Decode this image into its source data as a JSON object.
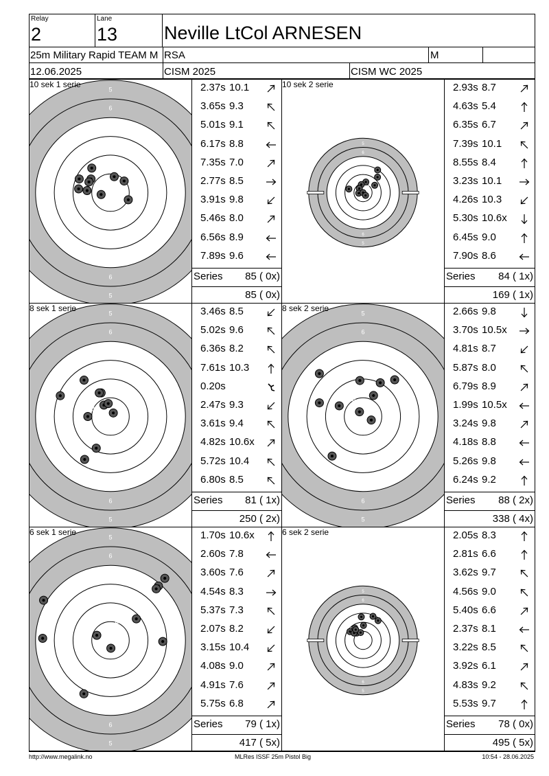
{
  "header": {
    "relay_label": "Relay",
    "relay": "2",
    "lane_label": "Lane",
    "lane": "13",
    "shooter": "Neville LtCol ARNESEN",
    "event": "25m Military Rapid TEAM M",
    "nation": "RSA",
    "gender": "M",
    "date": "12.06.2025",
    "competition": "CISM 2025",
    "championship": "CISM WC 2025"
  },
  "series_label": "Series",
  "panels": [
    {
      "title": "10 sek 1 serie",
      "scale": "big",
      "series_total": "85 ( 0x)",
      "running_total": "85 ( 0x)",
      "shots": [
        {
          "time": "2.37s",
          "score": "10.1",
          "arrow": "ne",
          "dx": -0.5,
          "dy": 0.1
        },
        {
          "time": "3.65s",
          "score": "9.3",
          "arrow": "nw",
          "dx": 0.2,
          "dy": -0.85
        },
        {
          "time": "5.01s",
          "score": "9.1",
          "arrow": "nw",
          "dx": 0.73,
          "dy": -0.62
        },
        {
          "time": "6.17s",
          "score": "8.8",
          "arrow": "w",
          "dx": -1.04,
          "dy": -0.73
        },
        {
          "time": "7.35s",
          "score": "7.0",
          "arrow": "ne",
          "dx": -1.25,
          "dy": -0.11
        },
        {
          "time": "2.77s",
          "score": "8.5",
          "arrow": "e",
          "dx": 0.95,
          "dy": 0.38
        },
        {
          "time": "3.91s",
          "score": "9.8",
          "arrow": "sw",
          "dx": -1.15,
          "dy": -0.57
        },
        {
          "time": "5.46s",
          "score": "8.0",
          "arrow": "ne",
          "dx": -1.0,
          "dy": -1.31
        },
        {
          "time": "6.56s",
          "score": "8.9",
          "arrow": "w",
          "dx": -1.67,
          "dy": -0.73
        },
        {
          "time": "7.89s",
          "score": "9.6",
          "arrow": "w",
          "dx": -1.7,
          "dy": -0.2
        }
      ]
    },
    {
      "title": "10 sek 2 serie",
      "scale": "small",
      "series_total": "84 ( 1x)",
      "running_total": "169 ( 1x)",
      "shots": [
        {
          "time": "2.93s",
          "score": "8.7",
          "arrow": "ne",
          "dx": 1.61,
          "dy": -2.5
        },
        {
          "time": "4.63s",
          "score": "5.4",
          "arrow": "n",
          "dx": 1.6,
          "dy": -1.71
        },
        {
          "time": "6.35s",
          "score": "6.7",
          "arrow": "ne",
          "dx": 0.31,
          "dy": -1.17
        },
        {
          "time": "7.39s",
          "score": "10.1",
          "arrow": "nw",
          "dx": -0.19,
          "dy": -0.89
        },
        {
          "time": "8.55s",
          "score": "8.4",
          "arrow": "n",
          "dx": 1.29,
          "dy": -0.81
        },
        {
          "time": "3.23s",
          "score": "10.1",
          "arrow": "e",
          "dx": -0.41,
          "dy": -0.46
        },
        {
          "time": "4.26s",
          "score": "10.3",
          "arrow": "sw",
          "dx": -0.48,
          "dy": 0.06
        },
        {
          "time": "5.30s",
          "score": "10.6x",
          "arrow": "s",
          "dx": 0.0,
          "dy": 0.0
        },
        {
          "time": "6.45s",
          "score": "9.0",
          "arrow": "n",
          "dx": 0.28,
          "dy": 0.31
        },
        {
          "time": "7.90s",
          "score": "8.6",
          "arrow": "w",
          "dx": -1.56,
          "dy": -0.4
        }
      ]
    },
    {
      "title": "8 sek 1 serie",
      "scale": "big",
      "series_total": "81 ( 1x)",
      "running_total": "250 ( 2x)",
      "shots": [
        {
          "time": "3.46s",
          "score": "8.5",
          "arrow": "sw",
          "dx": -1.41,
          "dy": -1.94
        },
        {
          "time": "5.02s",
          "score": "9.6",
          "arrow": "nw",
          "dx": -0.5,
          "dy": -1.26
        },
        {
          "time": "6.36s",
          "score": "8.2",
          "arrow": "nw",
          "dx": -0.6,
          "dy": -1.26
        },
        {
          "time": "7.61s",
          "score": "10.3",
          "arrow": "n",
          "dx": -0.35,
          "dy": -0.61
        },
        {
          "time": "0.20s",
          "score": "",
          "arrow": "scatter",
          "dx": -0.12,
          "dy": -0.69
        },
        {
          "time": "2.47s",
          "score": "9.3",
          "arrow": "sw",
          "dx": 0.15,
          "dy": -0.19
        },
        {
          "time": "3.61s",
          "score": "9.4",
          "arrow": "nw",
          "dx": -1.21,
          "dy": 0.0
        },
        {
          "time": "4.82s",
          "score": "10.6x",
          "arrow": "ne",
          "dx": -0.76,
          "dy": 1.69
        },
        {
          "time": "5.72s",
          "score": "10.4",
          "arrow": "nw",
          "dx": -1.38,
          "dy": 2.29
        },
        {
          "time": "6.80s",
          "score": "8.5",
          "arrow": "nw",
          "dx": -2.68,
          "dy": -1.11
        }
      ]
    },
    {
      "title": "8 sek 2 serie",
      "scale": "big",
      "series_total": "88 ( 2x)",
      "running_total": "338 ( 4x)",
      "shots": [
        {
          "time": "2.66s",
          "score": "9.8",
          "arrow": "s",
          "dx": -0.17,
          "dy": -1.92
        },
        {
          "time": "3.70s",
          "score": "10.5x",
          "arrow": "e",
          "dx": -0.19,
          "dy": -0.25
        },
        {
          "time": "4.81s",
          "score": "8.7",
          "arrow": "sw",
          "dx": 0.44,
          "dy": 0.19
        },
        {
          "time": "5.87s",
          "score": "8.0",
          "arrow": "nw",
          "dx": 0.56,
          "dy": -1.12
        },
        {
          "time": "6.79s",
          "score": "8.9",
          "arrow": "ne",
          "dx": 0.92,
          "dy": -1.8
        },
        {
          "time": "1.99s",
          "score": "10.5x",
          "arrow": "w",
          "dx": 1.69,
          "dy": -1.96
        },
        {
          "time": "3.24s",
          "score": "9.8",
          "arrow": "ne",
          "dx": -2.33,
          "dy": -2.29
        },
        {
          "time": "4.18s",
          "score": "8.8",
          "arrow": "w",
          "dx": -2.33,
          "dy": -0.73
        },
        {
          "time": "5.26s",
          "score": "9.8",
          "arrow": "w",
          "dx": -1.27,
          "dy": -0.57
        },
        {
          "time": "6.24s",
          "score": "9.2",
          "arrow": "n",
          "dx": -1.65,
          "dy": 2.11
        }
      ]
    },
    {
      "title": "6 sek 1 serie",
      "scale": "big",
      "series_total": "79 ( 1x)",
      "running_total": "417 ( 5x)",
      "shots": [
        {
          "time": "1.70s",
          "score": "10.6x",
          "arrow": "n",
          "dx": 0.02,
          "dy": 0.42
        },
        {
          "time": "2.60s",
          "score": "7.8",
          "arrow": "w",
          "dx": 1.38,
          "dy": -1.15
        },
        {
          "time": "3.60s",
          "score": "7.6",
          "arrow": "ne",
          "dx": 2.56,
          "dy": -2.9
        },
        {
          "time": "4.54s",
          "score": "8.3",
          "arrow": "e",
          "dx": 2.44,
          "dy": -2.75
        },
        {
          "time": "5.37s",
          "score": "7.3",
          "arrow": "nw",
          "dx": 2.79,
          "dy": 0.06
        },
        {
          "time": "2.07s",
          "score": "8.2",
          "arrow": "sw",
          "dx": 2.9,
          "dy": -3.31
        },
        {
          "time": "3.15s",
          "score": "10.4",
          "arrow": "sw",
          "dx": -0.73,
          "dy": -0.27
        },
        {
          "time": "4.08s",
          "score": "9.0",
          "arrow": "ne",
          "dx": -3.57,
          "dy": -2.14
        },
        {
          "time": "4.91s",
          "score": "7.6",
          "arrow": "ne",
          "dx": -3.62,
          "dy": -0.11
        },
        {
          "time": "5.75s",
          "score": "6.8",
          "arrow": "ne",
          "dx": -1.42,
          "dy": 2.85
        }
      ]
    },
    {
      "title": "6 sek 2 serie",
      "scale": "small",
      "series_total": "78 ( 0x)",
      "running_total": "495 ( 5x)",
      "shots": [
        {
          "time": "2.05s",
          "score": "8.3",
          "arrow": "n",
          "dx": -0.19,
          "dy": -2.59
        },
        {
          "time": "2.81s",
          "score": "6.6",
          "arrow": "n",
          "dx": 1.1,
          "dy": -2.65
        },
        {
          "time": "3.62s",
          "score": "9.7",
          "arrow": "nw",
          "dx": 1.66,
          "dy": -2.18
        },
        {
          "time": "4.56s",
          "score": "9.0",
          "arrow": "nw",
          "dx": 0.05,
          "dy": -1.65
        },
        {
          "time": "5.40s",
          "score": "6.6",
          "arrow": "ne",
          "dx": -0.91,
          "dy": -1.36
        },
        {
          "time": "2.37s",
          "score": "8.1",
          "arrow": "w",
          "dx": -1.45,
          "dy": -0.97
        },
        {
          "time": "3.22s",
          "score": "8.5",
          "arrow": "nw",
          "dx": -0.7,
          "dy": -0.81
        },
        {
          "time": "3.92s",
          "score": "6.1",
          "arrow": "ne",
          "dx": -0.99,
          "dy": -0.81
        },
        {
          "time": "4.83s",
          "score": "9.2",
          "arrow": "nw",
          "dx": -0.27,
          "dy": -0.86
        },
        {
          "time": "5.53s",
          "score": "9.7",
          "arrow": "n",
          "dx": -0.81,
          "dy": -1.18
        }
      ]
    }
  ],
  "footer": {
    "url": "http://www.megalink.no",
    "software": "MLRes ISSF 25m Pistol Big",
    "timestamp": "10:54 - 28.06.2025"
  },
  "colors": {
    "target_gray": "#bebebe",
    "ring_line": "#000000",
    "white": "#ffffff"
  }
}
